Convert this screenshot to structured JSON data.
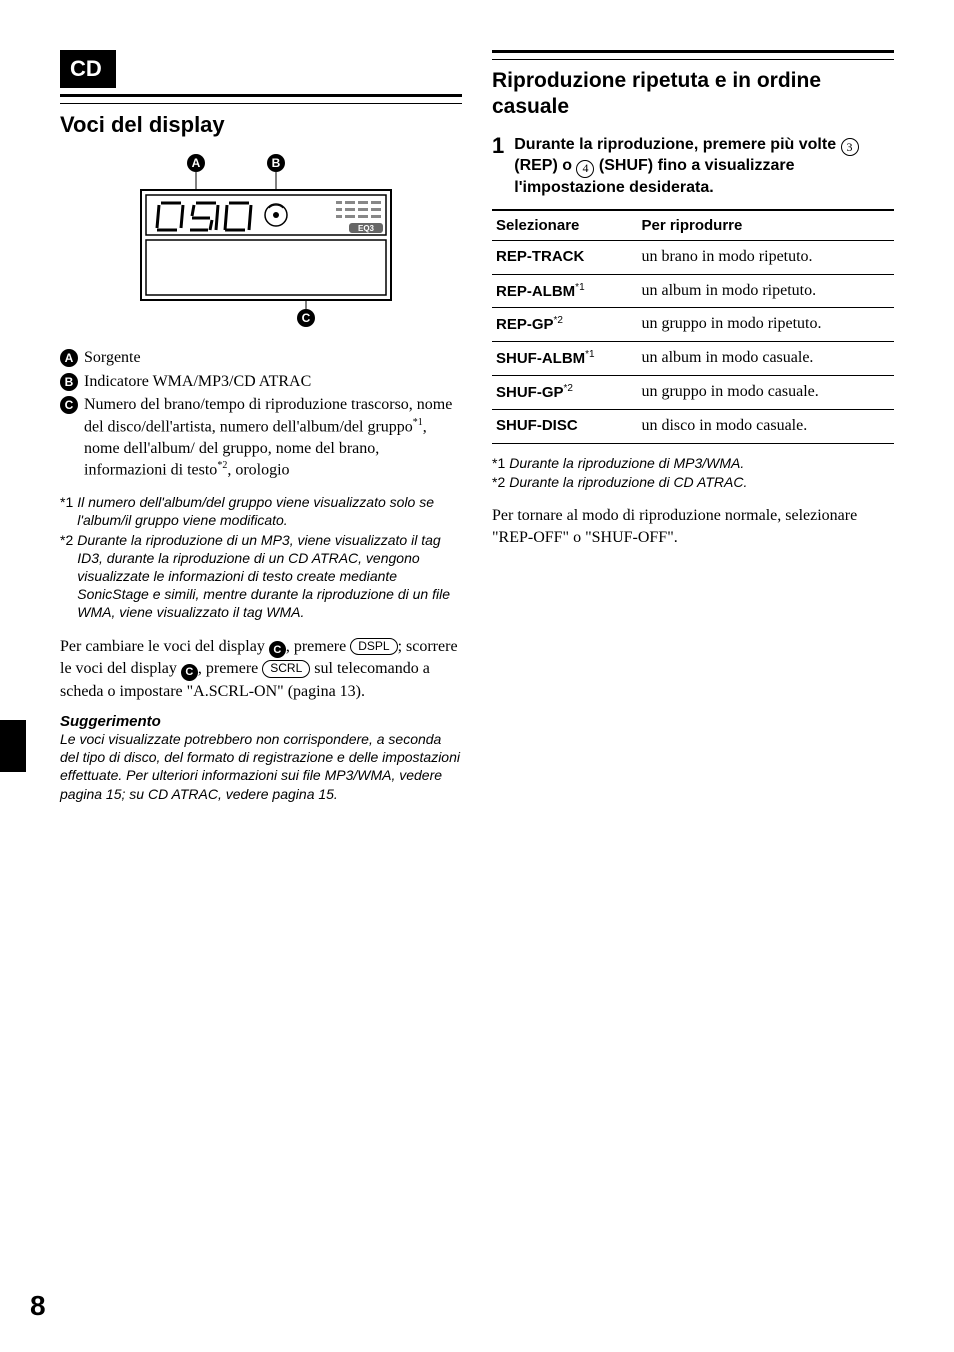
{
  "left": {
    "badge": "CD",
    "section_title": "Voci del display",
    "diagram": {
      "labels": {
        "A": "A",
        "B": "B",
        "C": "C"
      }
    },
    "legend": {
      "a": "Sorgente",
      "b": "Indicatore WMA/MP3/CD ATRAC",
      "c_parts": {
        "p1": "Numero del brano/tempo di riproduzione trascorso, nome del disco/dell'artista, numero dell'album/del gruppo",
        "p2": ", nome dell'album/ del gruppo, nome del brano, informazioni di testo",
        "p3": ", orologio"
      },
      "c_sup1": "*1",
      "c_sup2": "*2"
    },
    "footnotes": {
      "f1_marker": "*1",
      "f1": "Il numero dell'album/del gruppo viene visualizzato solo se l'album/il gruppo viene modificato.",
      "f2_marker": "*2",
      "f2": "Durante la riproduzione di un MP3, viene visualizzato il tag ID3, durante la riproduzione di un CD ATRAC, vengono visualizzate le informazioni di testo create mediante SonicStage e simili, mentre durante la riproduzione di un file WMA, viene visualizzato il tag WMA."
    },
    "para": {
      "p1": "Per cambiare le voci del display ",
      "p2": ", premere ",
      "key1": "DSPL",
      "p3": "; scorrere le voci del display ",
      "p4": ", premere ",
      "key2": "SCRL",
      "p5": " sul telecomando a scheda o impostare \"A.SCRL-ON\" (pagina 13)."
    },
    "tip_heading": "Suggerimento",
    "tip_text": "Le voci visualizzate potrebbero non corrispondere, a seconda del tipo di disco, del formato di registrazione e delle impostazioni effettuate. Per ulteriori informazioni sui file MP3/WMA, vedere pagina 15; su CD ATRAC, vedere pagina 15."
  },
  "right": {
    "heading": "Riproduzione ripetuta e in ordine casuale",
    "step_num": "1",
    "step": {
      "p1": "Durante la riproduzione, premere più volte ",
      "n1": "3",
      "p2": " (REP) o ",
      "n2": "4",
      "p3": " (SHUF) fino a visualizzare l'impostazione desiderata."
    },
    "table": {
      "headers": {
        "sel": "Selezionare",
        "play": "Per riprodurre"
      },
      "rows": [
        {
          "sel": "REP-TRACK",
          "sup": "",
          "play": "un brano in modo ripetuto."
        },
        {
          "sel": "REP-ALBM",
          "sup": "*1",
          "play": "un album in modo ripetuto."
        },
        {
          "sel": "REP-GP",
          "sup": "*2",
          "play": "un gruppo in modo ripetuto."
        },
        {
          "sel": "SHUF-ALBM",
          "sup": "*1",
          "play": "un album in modo casuale."
        },
        {
          "sel": "SHUF-GP",
          "sup": "*2",
          "play": "un gruppo in modo casuale."
        },
        {
          "sel": "SHUF-DISC",
          "sup": "",
          "play": "un disco in modo casuale."
        }
      ]
    },
    "footnotes": {
      "f1_marker": "*1",
      "f1": "Durante la riproduzione di MP3/WMA.",
      "f2_marker": "*2",
      "f2": "Durante la riproduzione di CD ATRAC."
    },
    "closing": "Per tornare al modo di riproduzione normale, selezionare \"REP-OFF\" o \"SHUF-OFF\"."
  },
  "page_number": "8"
}
